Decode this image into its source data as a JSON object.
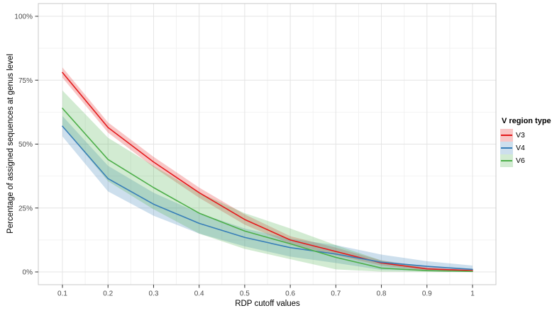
{
  "chart_data": {
    "type": "line",
    "title": "",
    "xlabel": "RDP cutoff values",
    "ylabel": "Percentage of assigned sequences at genus level",
    "legend_title": "V region type",
    "legend_position": "right",
    "grid": "major+minor",
    "x": [
      0.1,
      0.2,
      0.3,
      0.4,
      0.5,
      0.6,
      0.7,
      0.8,
      0.9,
      1.0
    ],
    "x_tick_labels": [
      "0.1",
      "0.2",
      "0.3",
      "0.4",
      "0.5",
      "0.6",
      "0.7",
      "0.8",
      "0.9",
      "1"
    ],
    "y_ticks": [
      0,
      25,
      50,
      75,
      100
    ],
    "y_tick_labels": [
      "0%",
      "25%",
      "50%",
      "75%",
      "100%"
    ],
    "xlim": [
      0.05,
      1.05
    ],
    "ylim": [
      0,
      100
    ],
    "series": [
      {
        "name": "V3",
        "color": "#e41a1c",
        "values": [
          78,
          56.5,
          43,
          31,
          20.5,
          12.5,
          8,
          3.5,
          1.2,
          0.5
        ],
        "band_upper": [
          80,
          58.5,
          45,
          33,
          22.5,
          14,
          9.5,
          4.5,
          2,
          1
        ],
        "band_lower": [
          76,
          54.5,
          41,
          29,
          18.5,
          11,
          6.5,
          2.5,
          0.5,
          0.1
        ]
      },
      {
        "name": "V4",
        "color": "#377eb8",
        "values": [
          57,
          36.5,
          26.5,
          19,
          13.5,
          9.5,
          7,
          3.8,
          2.2,
          1
        ],
        "band_upper": [
          61,
          41.5,
          31,
          23,
          17,
          13,
          10.5,
          6.8,
          4.2,
          2.5
        ],
        "band_lower": [
          53,
          31.5,
          22,
          15,
          10,
          6,
          3.5,
          0.8,
          0.3,
          0
        ]
      },
      {
        "name": "V6",
        "color": "#4daf4a",
        "values": [
          64,
          44,
          33,
          23,
          16,
          11,
          5.7,
          1.5,
          0.5,
          0.2
        ],
        "band_upper": [
          71,
          52.5,
          41.5,
          31,
          23,
          17,
          10.5,
          4.5,
          1.5,
          0.6
        ],
        "band_lower": [
          57,
          35.5,
          24.5,
          15,
          9,
          5,
          1,
          0.1,
          0,
          0
        ]
      }
    ]
  },
  "axes": {
    "x_title": "RDP cutoff values",
    "y_title": "Percentage of assigned sequences at genus level"
  },
  "legend": {
    "title": "V region type",
    "entries": [
      {
        "label": "V3",
        "color": "#e41a1c"
      },
      {
        "label": "V4",
        "color": "#377eb8"
      },
      {
        "label": "V6",
        "color": "#4daf4a"
      }
    ]
  },
  "style": {
    "grid_major_color": "#e4e4e4",
    "grid_minor_color": "#f2f2f2",
    "panel_border_color": "#c9c9c9",
    "tick_mark_color": "#333333",
    "tick_label_color": "#4d4d4d",
    "ribbon_opacity": 0.25
  }
}
